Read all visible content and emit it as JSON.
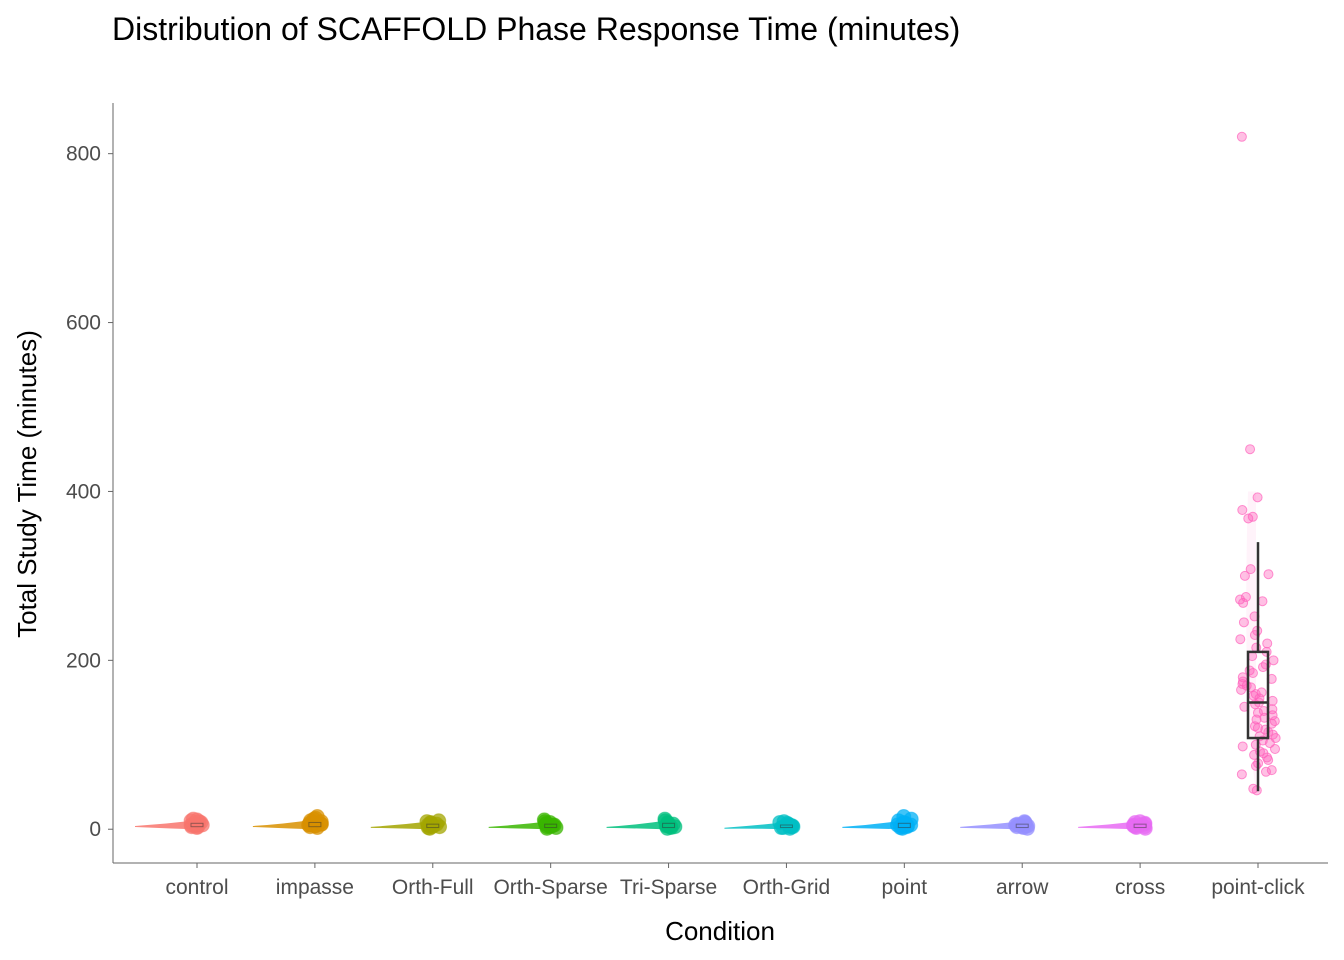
{
  "chart_data": {
    "type": "boxplot",
    "title": "Distribution of SCAFFOLD Phase Response Time (minutes)",
    "xlabel": "Condition",
    "ylabel": "Total Study Time (minutes)",
    "ylim": [
      -40,
      860
    ],
    "yticks": [
      0,
      200,
      400,
      600,
      800
    ],
    "grid": false,
    "legend": "none",
    "categories": [
      "control",
      "impasse",
      "Orth-Full",
      "Orth-Sparse",
      "Tri-Sparse",
      "Orth-Grid",
      "point",
      "arrow",
      "cross",
      "point-click"
    ],
    "colors": [
      "#F8766D",
      "#D89000",
      "#A3A500",
      "#39B600",
      "#00BF7D",
      "#00BFC4",
      "#00B0F6",
      "#9590FF",
      "#E76BF3",
      "#FF62BC"
    ],
    "series": [
      {
        "category": "control",
        "q1": 3,
        "median": 5,
        "q3": 7,
        "whisker_low": 1,
        "whisker_high": 12,
        "points": [
          2,
          3,
          3,
          4,
          4,
          5,
          5,
          5,
          6,
          6,
          7,
          8,
          9,
          10,
          11,
          12
        ]
      },
      {
        "category": "impasse",
        "q1": 3,
        "median": 5,
        "q3": 8,
        "whisker_low": 1,
        "whisker_high": 15,
        "points": [
          2,
          3,
          4,
          4,
          5,
          5,
          6,
          6,
          7,
          8,
          9,
          10,
          12,
          13,
          15
        ]
      },
      {
        "category": "Orth-Full",
        "q1": 2,
        "median": 4,
        "q3": 6,
        "whisker_low": 1,
        "whisker_high": 10,
        "points": [
          1,
          2,
          3,
          3,
          4,
          4,
          5,
          5,
          6,
          7,
          8,
          9,
          10
        ]
      },
      {
        "category": "Orth-Sparse",
        "q1": 2,
        "median": 4,
        "q3": 6,
        "whisker_low": 1,
        "whisker_high": 11,
        "points": [
          1,
          2,
          3,
          3,
          4,
          4,
          5,
          5,
          6,
          7,
          8,
          9,
          11
        ]
      },
      {
        "category": "Tri-Sparse",
        "q1": 2,
        "median": 4,
        "q3": 7,
        "whisker_low": 1,
        "whisker_high": 12,
        "points": [
          1,
          2,
          3,
          3,
          4,
          4,
          5,
          5,
          6,
          7,
          8,
          10,
          12
        ]
      },
      {
        "category": "Orth-Grid",
        "q1": 2,
        "median": 3,
        "q3": 5,
        "whisker_low": 1,
        "whisker_high": 9,
        "points": [
          1,
          2,
          2,
          3,
          3,
          3,
          4,
          4,
          5,
          6,
          7,
          8,
          9
        ]
      },
      {
        "category": "point",
        "q1": 2,
        "median": 4,
        "q3": 7,
        "whisker_low": 1,
        "whisker_high": 15,
        "points": [
          1,
          2,
          3,
          3,
          4,
          4,
          5,
          5,
          6,
          7,
          8,
          10,
          12,
          15
        ]
      },
      {
        "category": "arrow",
        "q1": 2,
        "median": 4,
        "q3": 6,
        "whisker_low": 1,
        "whisker_high": 9,
        "points": [
          1,
          2,
          3,
          3,
          4,
          4,
          5,
          5,
          6,
          7,
          8,
          9
        ]
      },
      {
        "category": "cross",
        "q1": 2,
        "median": 4,
        "q3": 6,
        "whisker_low": 1,
        "whisker_high": 9,
        "points": [
          1,
          2,
          3,
          3,
          4,
          4,
          5,
          5,
          6,
          7,
          8,
          9
        ]
      },
      {
        "category": "point-click",
        "q1": 108,
        "median": 150,
        "q3": 210,
        "whisker_low": 45,
        "whisker_high": 340,
        "points": [
          820,
          450,
          393,
          378,
          370,
          368,
          308,
          302,
          300,
          275,
          272,
          270,
          268,
          252,
          245,
          235,
          230,
          225,
          220,
          215,
          210,
          205,
          200,
          195,
          192,
          188,
          185,
          180,
          178,
          175,
          172,
          170,
          168,
          165,
          162,
          160,
          158,
          155,
          152,
          150,
          148,
          145,
          142,
          140,
          138,
          135,
          132,
          130,
          128,
          125,
          122,
          120,
          118,
          115,
          112,
          110,
          108,
          105,
          102,
          100,
          98,
          95,
          92,
          90,
          88,
          85,
          82,
          78,
          75,
          70,
          68,
          65,
          48,
          46
        ]
      }
    ]
  }
}
